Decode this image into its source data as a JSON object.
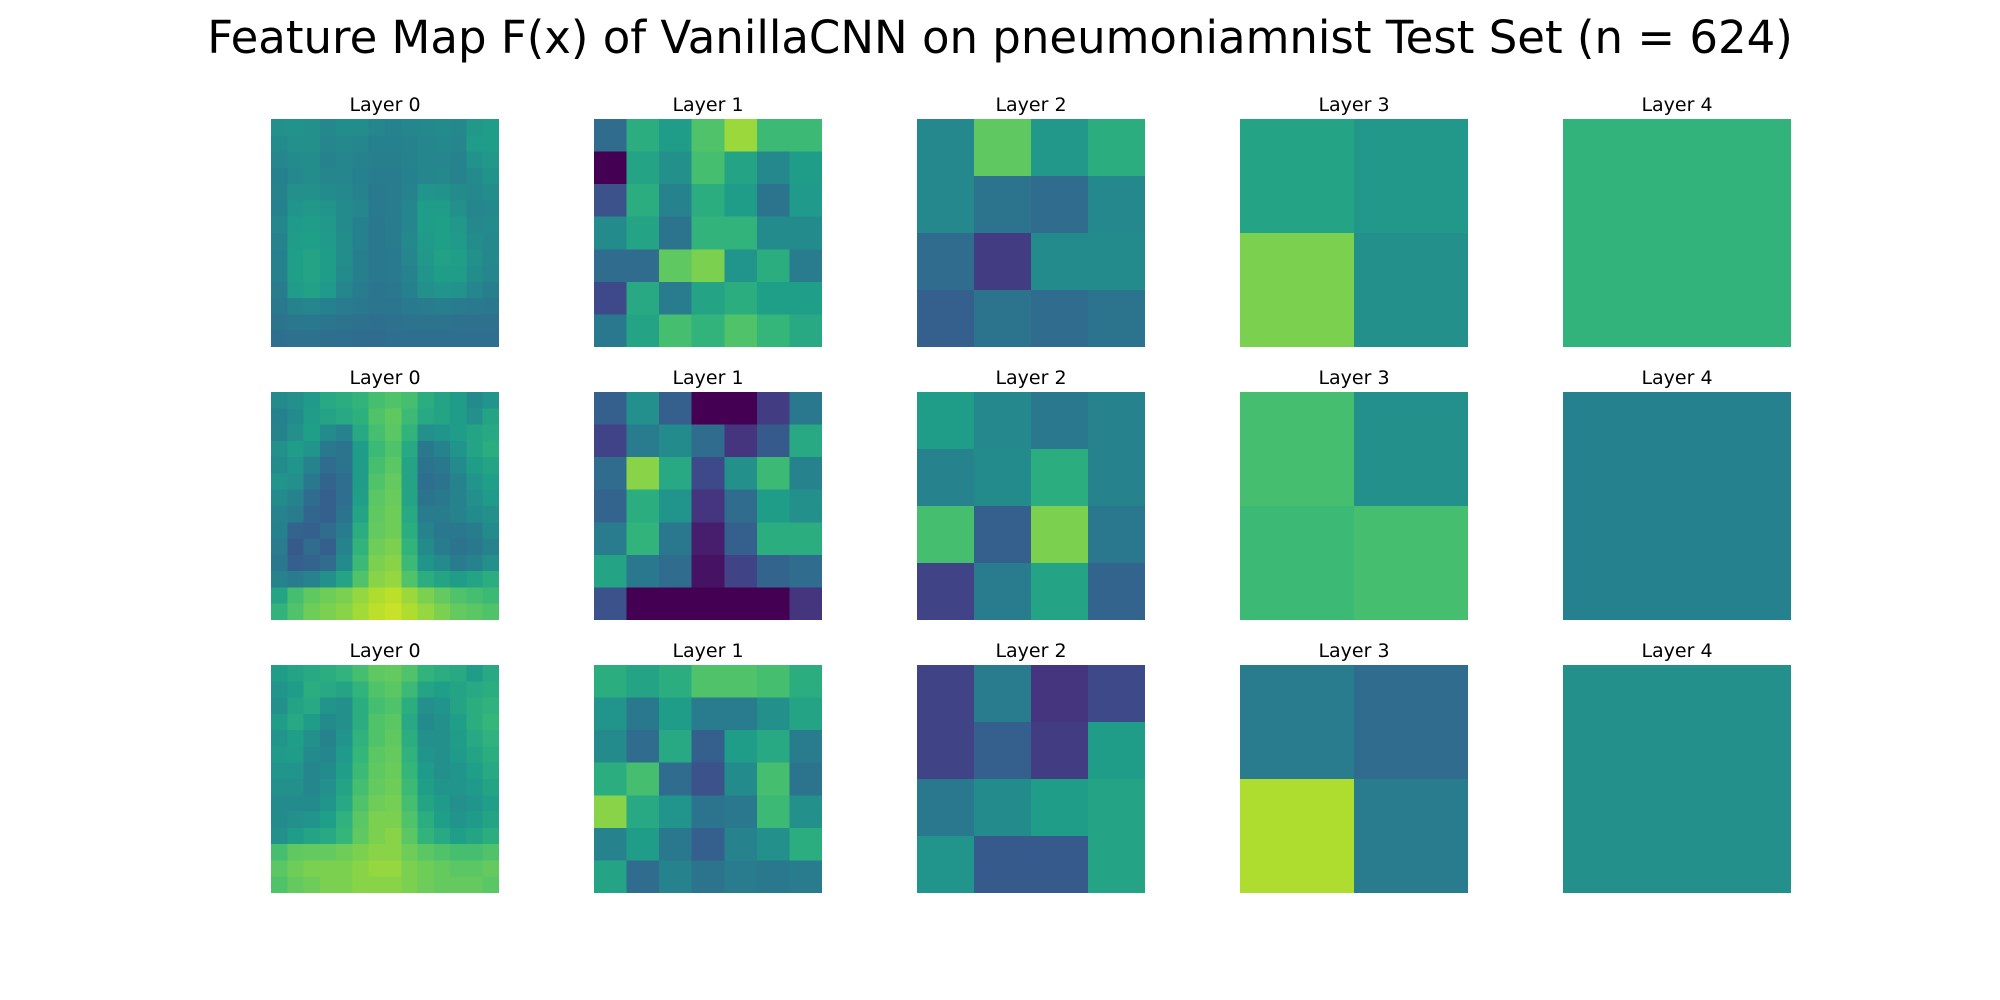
{
  "title": "Feature Map F(x) of VanillaCNN on pneumoniamnist Test Set (n = 624)",
  "chart_data": {
    "type": "heatmap",
    "colormap": "viridis",
    "value_range": [
      0,
      1
    ],
    "axes_visible": false,
    "rows": [
      [
        {
          "title": "Layer 0",
          "grid": [
            [
              0.5,
              0.51,
              0.5,
              0.47,
              0.49,
              0.49,
              0.46,
              0.45,
              0.46,
              0.47,
              0.48,
              0.47,
              0.53,
              0.55
            ],
            [
              0.48,
              0.5,
              0.5,
              0.46,
              0.47,
              0.46,
              0.44,
              0.44,
              0.45,
              0.46,
              0.47,
              0.46,
              0.55,
              0.55
            ],
            [
              0.46,
              0.48,
              0.49,
              0.45,
              0.46,
              0.45,
              0.43,
              0.43,
              0.45,
              0.46,
              0.46,
              0.45,
              0.51,
              0.53
            ],
            [
              0.44,
              0.47,
              0.49,
              0.46,
              0.46,
              0.44,
              0.42,
              0.42,
              0.44,
              0.46,
              0.47,
              0.45,
              0.48,
              0.51
            ],
            [
              0.45,
              0.5,
              0.5,
              0.48,
              0.47,
              0.45,
              0.41,
              0.42,
              0.45,
              0.52,
              0.51,
              0.48,
              0.47,
              0.49
            ],
            [
              0.44,
              0.52,
              0.53,
              0.52,
              0.48,
              0.46,
              0.41,
              0.42,
              0.46,
              0.55,
              0.55,
              0.5,
              0.46,
              0.47
            ],
            [
              0.46,
              0.54,
              0.55,
              0.53,
              0.48,
              0.44,
              0.4,
              0.42,
              0.46,
              0.55,
              0.56,
              0.53,
              0.47,
              0.48
            ],
            [
              0.45,
              0.55,
              0.56,
              0.54,
              0.49,
              0.44,
              0.4,
              0.42,
              0.47,
              0.54,
              0.56,
              0.54,
              0.49,
              0.47
            ],
            [
              0.44,
              0.56,
              0.58,
              0.55,
              0.49,
              0.43,
              0.4,
              0.41,
              0.46,
              0.53,
              0.57,
              0.56,
              0.5,
              0.47
            ],
            [
              0.44,
              0.56,
              0.58,
              0.55,
              0.48,
              0.43,
              0.4,
              0.41,
              0.45,
              0.52,
              0.55,
              0.55,
              0.49,
              0.46
            ],
            [
              0.42,
              0.55,
              0.57,
              0.54,
              0.46,
              0.42,
              0.39,
              0.4,
              0.44,
              0.5,
              0.52,
              0.51,
              0.46,
              0.43
            ],
            [
              0.4,
              0.45,
              0.46,
              0.44,
              0.42,
              0.4,
              0.39,
              0.39,
              0.41,
              0.42,
              0.43,
              0.42,
              0.41,
              0.4
            ],
            [
              0.38,
              0.4,
              0.4,
              0.39,
              0.38,
              0.37,
              0.36,
              0.37,
              0.38,
              0.38,
              0.38,
              0.37,
              0.37,
              0.37
            ],
            [
              0.36,
              0.37,
              0.37,
              0.36,
              0.36,
              0.35,
              0.35,
              0.36,
              0.36,
              0.36,
              0.36,
              0.36,
              0.36,
              0.36
            ]
          ]
        },
        {
          "title": "Layer 1",
          "grid": [
            [
              0.35,
              0.62,
              0.55,
              0.72,
              0.85,
              0.68,
              0.68
            ],
            [
              0.0,
              0.58,
              0.5,
              0.7,
              0.58,
              0.47,
              0.55
            ],
            [
              0.25,
              0.62,
              0.45,
              0.62,
              0.55,
              0.38,
              0.54
            ],
            [
              0.48,
              0.58,
              0.38,
              0.65,
              0.65,
              0.48,
              0.48
            ],
            [
              0.35,
              0.35,
              0.75,
              0.8,
              0.52,
              0.62,
              0.42
            ],
            [
              0.22,
              0.6,
              0.42,
              0.58,
              0.62,
              0.56,
              0.56
            ],
            [
              0.4,
              0.58,
              0.7,
              0.65,
              0.72,
              0.66,
              0.6
            ]
          ]
        },
        {
          "title": "Layer 2",
          "grid": [
            [
              0.47,
              0.75,
              0.53,
              0.62
            ],
            [
              0.47,
              0.38,
              0.35,
              0.47
            ],
            [
              0.35,
              0.18,
              0.48,
              0.48
            ],
            [
              0.3,
              0.38,
              0.35,
              0.38
            ]
          ]
        },
        {
          "title": "Layer 3",
          "grid": [
            [
              0.58,
              0.53
            ],
            [
              0.8,
              0.5
            ]
          ]
        },
        {
          "title": "Layer 4",
          "grid": [
            [
              0.65
            ]
          ]
        }
      ],
      [
        {
          "title": "Layer 0",
          "grid": [
            [
              0.48,
              0.5,
              0.54,
              0.6,
              0.62,
              0.65,
              0.7,
              0.72,
              0.7,
              0.62,
              0.58,
              0.55,
              0.48,
              0.52
            ],
            [
              0.44,
              0.48,
              0.55,
              0.58,
              0.6,
              0.63,
              0.72,
              0.75,
              0.68,
              0.6,
              0.58,
              0.55,
              0.5,
              0.58
            ],
            [
              0.45,
              0.5,
              0.56,
              0.48,
              0.45,
              0.6,
              0.7,
              0.74,
              0.65,
              0.5,
              0.52,
              0.55,
              0.58,
              0.6
            ],
            [
              0.5,
              0.55,
              0.52,
              0.4,
              0.38,
              0.55,
              0.68,
              0.72,
              0.6,
              0.4,
              0.45,
              0.52,
              0.58,
              0.62
            ],
            [
              0.48,
              0.52,
              0.45,
              0.35,
              0.38,
              0.55,
              0.7,
              0.74,
              0.58,
              0.38,
              0.4,
              0.48,
              0.55,
              0.58
            ],
            [
              0.52,
              0.5,
              0.4,
              0.32,
              0.36,
              0.55,
              0.72,
              0.76,
              0.58,
              0.36,
              0.38,
              0.45,
              0.52,
              0.56
            ],
            [
              0.48,
              0.45,
              0.35,
              0.3,
              0.36,
              0.56,
              0.74,
              0.77,
              0.58,
              0.38,
              0.4,
              0.45,
              0.5,
              0.54
            ],
            [
              0.45,
              0.42,
              0.33,
              0.3,
              0.38,
              0.58,
              0.75,
              0.78,
              0.6,
              0.42,
              0.42,
              0.45,
              0.48,
              0.5
            ],
            [
              0.44,
              0.32,
              0.3,
              0.35,
              0.42,
              0.62,
              0.76,
              0.78,
              0.62,
              0.45,
              0.4,
              0.4,
              0.42,
              0.48
            ],
            [
              0.42,
              0.28,
              0.35,
              0.3,
              0.45,
              0.65,
              0.78,
              0.8,
              0.65,
              0.48,
              0.42,
              0.38,
              0.4,
              0.45
            ],
            [
              0.4,
              0.3,
              0.32,
              0.35,
              0.48,
              0.68,
              0.8,
              0.82,
              0.68,
              0.52,
              0.48,
              0.42,
              0.45,
              0.5
            ],
            [
              0.45,
              0.42,
              0.45,
              0.5,
              0.58,
              0.72,
              0.82,
              0.84,
              0.72,
              0.62,
              0.58,
              0.55,
              0.58,
              0.62
            ],
            [
              0.58,
              0.7,
              0.75,
              0.78,
              0.8,
              0.84,
              0.88,
              0.9,
              0.85,
              0.8,
              0.76,
              0.72,
              0.7,
              0.68
            ],
            [
              0.65,
              0.72,
              0.78,
              0.8,
              0.82,
              0.86,
              0.9,
              0.92,
              0.88,
              0.84,
              0.8,
              0.76,
              0.74,
              0.72
            ]
          ]
        },
        {
          "title": "Layer 1",
          "grid": [
            [
              0.3,
              0.5,
              0.3,
              0.0,
              0.0,
              0.18,
              0.4
            ],
            [
              0.2,
              0.42,
              0.48,
              0.35,
              0.15,
              0.28,
              0.6
            ],
            [
              0.35,
              0.82,
              0.6,
              0.22,
              0.5,
              0.68,
              0.45
            ],
            [
              0.32,
              0.62,
              0.52,
              0.15,
              0.35,
              0.55,
              0.5
            ],
            [
              0.42,
              0.65,
              0.4,
              0.08,
              0.3,
              0.62,
              0.62
            ],
            [
              0.58,
              0.4,
              0.35,
              0.05,
              0.2,
              0.32,
              0.35
            ],
            [
              0.25,
              0.0,
              0.0,
              0.0,
              0.0,
              0.0,
              0.15
            ]
          ]
        },
        {
          "title": "Layer 2",
          "grid": [
            [
              0.55,
              0.47,
              0.4,
              0.45
            ],
            [
              0.45,
              0.48,
              0.62,
              0.45
            ],
            [
              0.7,
              0.3,
              0.8,
              0.4
            ],
            [
              0.2,
              0.42,
              0.58,
              0.32
            ]
          ]
        },
        {
          "title": "Layer 3",
          "grid": [
            [
              0.7,
              0.5
            ],
            [
              0.68,
              0.7
            ]
          ]
        },
        {
          "title": "Layer 4",
          "grid": [
            [
              0.44
            ]
          ]
        }
      ],
      [
        {
          "title": "Layer 0",
          "grid": [
            [
              0.55,
              0.58,
              0.6,
              0.62,
              0.65,
              0.7,
              0.75,
              0.76,
              0.72,
              0.65,
              0.62,
              0.6,
              0.55,
              0.6
            ],
            [
              0.52,
              0.55,
              0.62,
              0.6,
              0.58,
              0.65,
              0.72,
              0.74,
              0.68,
              0.58,
              0.56,
              0.58,
              0.6,
              0.62
            ],
            [
              0.5,
              0.58,
              0.6,
              0.52,
              0.5,
              0.62,
              0.7,
              0.72,
              0.62,
              0.5,
              0.52,
              0.58,
              0.62,
              0.64
            ],
            [
              0.55,
              0.6,
              0.55,
              0.48,
              0.5,
              0.62,
              0.72,
              0.74,
              0.6,
              0.48,
              0.5,
              0.56,
              0.62,
              0.66
            ],
            [
              0.52,
              0.56,
              0.5,
              0.45,
              0.52,
              0.64,
              0.72,
              0.75,
              0.62,
              0.5,
              0.5,
              0.55,
              0.6,
              0.64
            ],
            [
              0.54,
              0.55,
              0.48,
              0.46,
              0.54,
              0.66,
              0.74,
              0.76,
              0.64,
              0.52,
              0.5,
              0.54,
              0.58,
              0.62
            ],
            [
              0.52,
              0.52,
              0.46,
              0.48,
              0.56,
              0.68,
              0.75,
              0.77,
              0.66,
              0.54,
              0.5,
              0.52,
              0.56,
              0.6
            ],
            [
              0.5,
              0.5,
              0.46,
              0.5,
              0.58,
              0.7,
              0.76,
              0.78,
              0.68,
              0.56,
              0.52,
              0.52,
              0.54,
              0.58
            ],
            [
              0.48,
              0.48,
              0.48,
              0.52,
              0.6,
              0.72,
              0.78,
              0.79,
              0.7,
              0.58,
              0.54,
              0.5,
              0.52,
              0.56
            ],
            [
              0.48,
              0.5,
              0.52,
              0.56,
              0.64,
              0.74,
              0.8,
              0.8,
              0.72,
              0.62,
              0.56,
              0.52,
              0.54,
              0.58
            ],
            [
              0.5,
              0.55,
              0.58,
              0.6,
              0.66,
              0.75,
              0.8,
              0.82,
              0.74,
              0.65,
              0.6,
              0.56,
              0.58,
              0.62
            ],
            [
              0.7,
              0.75,
              0.76,
              0.76,
              0.78,
              0.8,
              0.82,
              0.82,
              0.78,
              0.74,
              0.72,
              0.7,
              0.7,
              0.72
            ],
            [
              0.74,
              0.78,
              0.8,
              0.8,
              0.8,
              0.82,
              0.84,
              0.84,
              0.8,
              0.78,
              0.76,
              0.74,
              0.74,
              0.76
            ],
            [
              0.72,
              0.76,
              0.78,
              0.8,
              0.8,
              0.82,
              0.82,
              0.82,
              0.8,
              0.78,
              0.76,
              0.76,
              0.76,
              0.74
            ]
          ]
        },
        {
          "title": "Layer 1",
          "grid": [
            [
              0.62,
              0.58,
              0.62,
              0.72,
              0.72,
              0.7,
              0.62
            ],
            [
              0.52,
              0.4,
              0.55,
              0.42,
              0.42,
              0.5,
              0.58
            ],
            [
              0.48,
              0.35,
              0.6,
              0.3,
              0.55,
              0.6,
              0.42
            ],
            [
              0.62,
              0.7,
              0.35,
              0.25,
              0.48,
              0.7,
              0.38
            ],
            [
              0.82,
              0.6,
              0.52,
              0.38,
              0.4,
              0.68,
              0.5
            ],
            [
              0.45,
              0.55,
              0.4,
              0.3,
              0.45,
              0.5,
              0.62
            ],
            [
              0.58,
              0.35,
              0.45,
              0.38,
              0.42,
              0.4,
              0.42
            ]
          ]
        },
        {
          "title": "Layer 2",
          "grid": [
            [
              0.2,
              0.42,
              0.15,
              0.22
            ],
            [
              0.2,
              0.3,
              0.18,
              0.55
            ],
            [
              0.4,
              0.48,
              0.55,
              0.58
            ],
            [
              0.52,
              0.28,
              0.28,
              0.58
            ]
          ]
        },
        {
          "title": "Layer 3",
          "grid": [
            [
              0.42,
              0.35
            ],
            [
              0.88,
              0.42
            ]
          ]
        },
        {
          "title": "Layer 4",
          "grid": [
            [
              0.5
            ]
          ]
        }
      ]
    ]
  }
}
